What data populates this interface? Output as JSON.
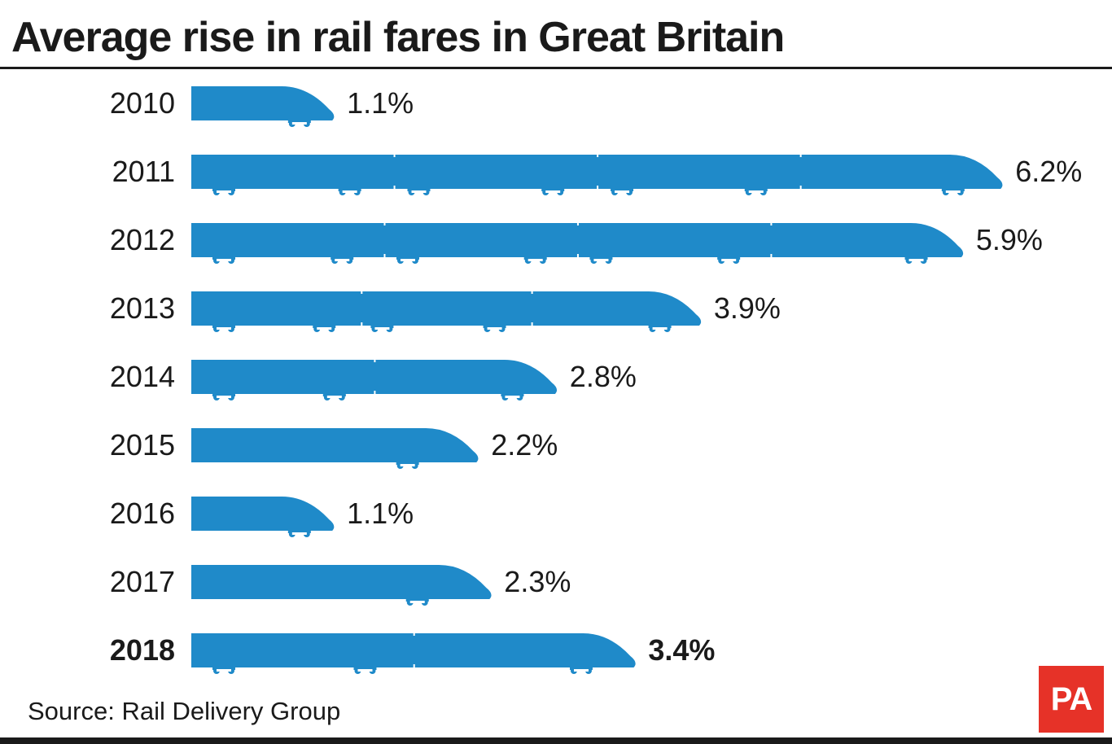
{
  "title": "Average rise in rail fares in Great Britain",
  "source": "Source: Rail Delivery Group",
  "logo_text": "PA",
  "colors": {
    "train": "#1f8ac9",
    "text": "#1a1a1a",
    "rule": "#1a1a1a",
    "logo_bg": "#e63228"
  },
  "chart_data": {
    "type": "bar",
    "orientation": "horizontal",
    "mark": "train-shaped bars",
    "categories": [
      "2010",
      "2011",
      "2012",
      "2013",
      "2014",
      "2015",
      "2016",
      "2017",
      "2018"
    ],
    "values": [
      1.1,
      6.2,
      5.9,
      3.9,
      2.8,
      2.2,
      1.1,
      2.3,
      3.4
    ],
    "value_labels": [
      "1.1%",
      "6.2%",
      "5.9%",
      "3.9%",
      "2.8%",
      "2.2%",
      "1.1%",
      "2.3%",
      "3.4%"
    ],
    "highlighted_category": "2018",
    "unit": "%",
    "grid": false,
    "legend": false
  }
}
